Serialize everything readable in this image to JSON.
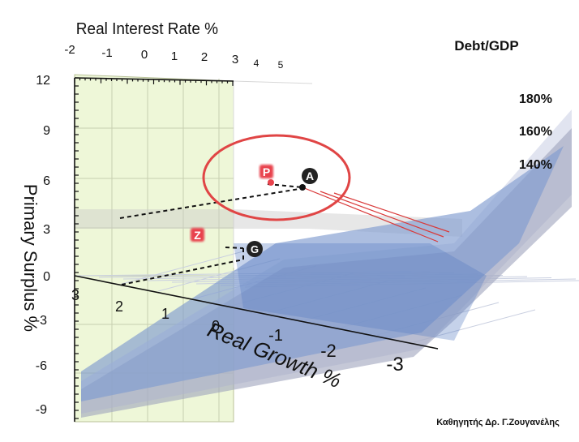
{
  "chart_data": {
    "type": "surface3d",
    "title": "",
    "axes": {
      "x": {
        "label": "Real Interest Rate %",
        "ticks": [
          "-2",
          "-1",
          "0",
          "1",
          "2",
          "3",
          "4",
          "5"
        ]
      },
      "y": {
        "label": "Primary Surplus %",
        "ticks": [
          "12",
          "9",
          "6",
          "3",
          "0",
          "-3",
          "-6",
          "-9"
        ]
      },
      "z": {
        "label": "Real Growth  %",
        "ticks": [
          "3",
          "2",
          "1",
          "0",
          "-1",
          "-2",
          "-3"
        ]
      }
    },
    "legend": {
      "title": "Debt/GDP",
      "placement": "right",
      "entries": [
        "180%",
        "160%",
        "140%"
      ]
    },
    "series": [
      {
        "name": "180%",
        "color": "#c9cde3"
      },
      {
        "name": "160%",
        "color": "#9ea3bd"
      },
      {
        "name": "140%",
        "color": "#7f9bd0"
      }
    ],
    "points": [
      {
        "label": "P",
        "color": "#e8434d"
      },
      {
        "label": "A",
        "color": "#222222"
      },
      {
        "label": "Z",
        "color": "#e8434d"
      },
      {
        "label": "G",
        "color": "#222222"
      }
    ],
    "highlight_color": "#d93a3a",
    "back_wall_color": "#eef7d8"
  },
  "credit": "Καθηγητής Δρ. Γ.Ζουγανέλης"
}
